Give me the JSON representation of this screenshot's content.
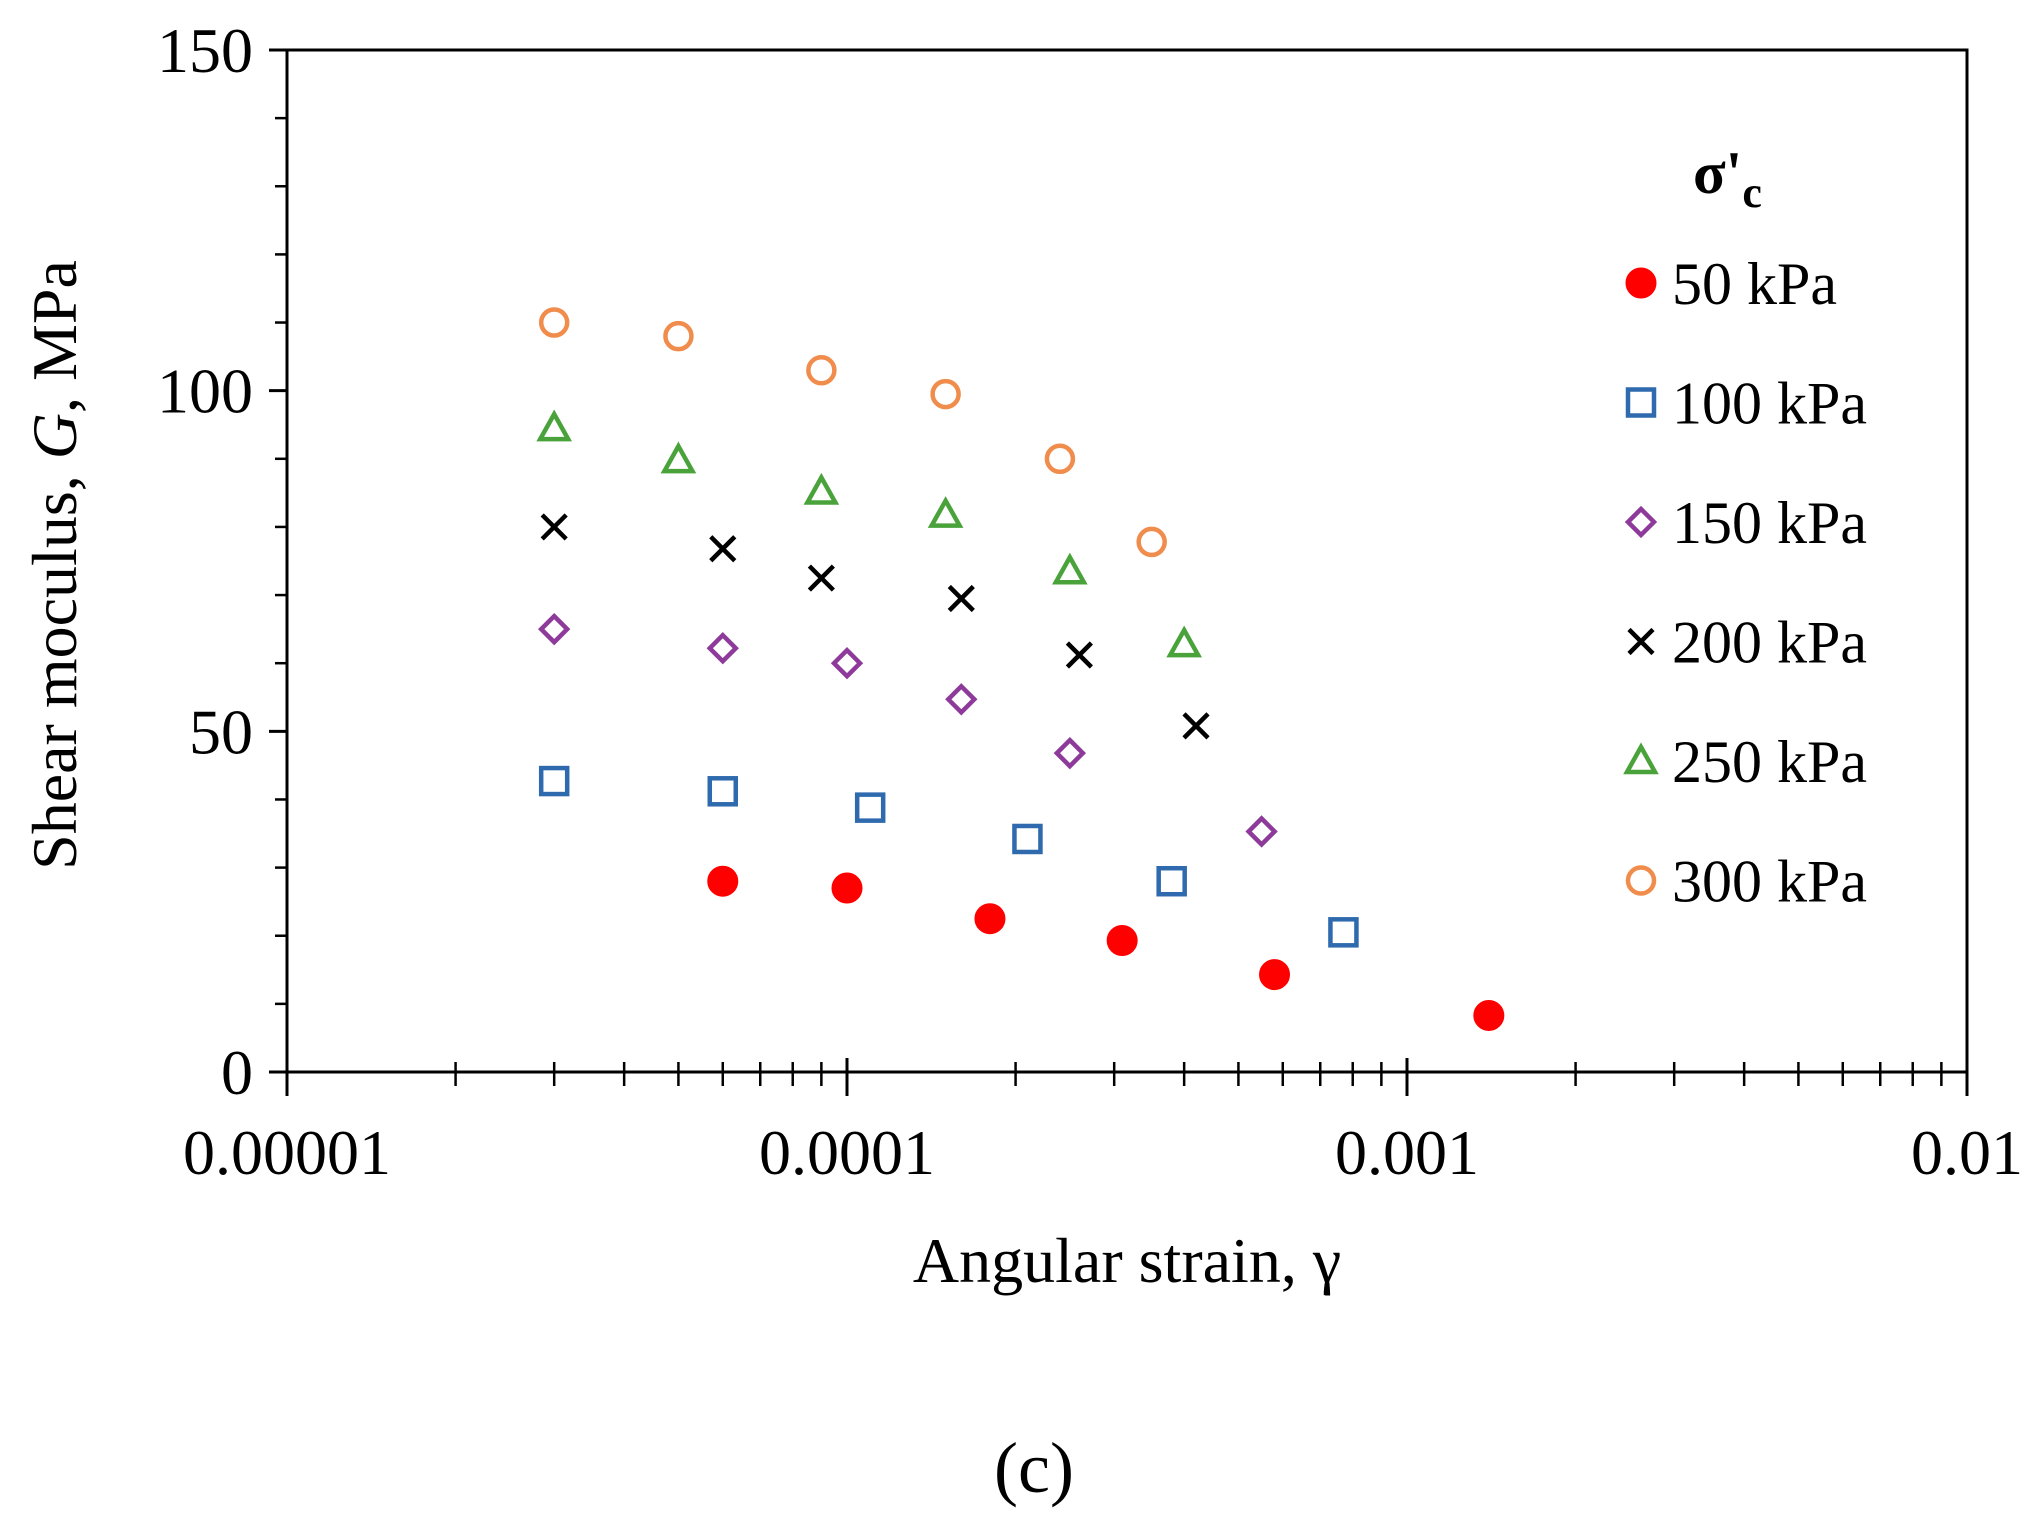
{
  "chart_data": {
    "type": "scatter",
    "x_scale": "log",
    "xlim": [
      1e-05,
      0.01
    ],
    "ylim": [
      0,
      150
    ],
    "xticks": [
      1e-05,
      0.0001,
      0.001,
      0.01
    ],
    "x_tick_labels": [
      "0.00001",
      "0.0001",
      "0.001",
      "0.01"
    ],
    "yticks": [
      0,
      50,
      100,
      150
    ],
    "y_tick_labels": [
      "0",
      "50",
      "100",
      "150"
    ],
    "y_minor_step": 10,
    "xlabel": "Angular strain, γ",
    "ylabel_parts": [
      "Shear moculus, ",
      "G",
      ", MPa"
    ],
    "legend": {
      "title_main": "σ'",
      "title_sub": "c",
      "location": "right"
    },
    "grid": false,
    "series": [
      {
        "name": "50 kPa",
        "marker": "filled-circle",
        "color": "#ff0000",
        "x": [
          6e-05,
          0.0001,
          0.00018,
          0.00031,
          0.00058,
          0.0014
        ],
        "y": [
          28,
          27,
          22.5,
          19.3,
          14.3,
          8.3
        ]
      },
      {
        "name": "100 kPa",
        "marker": "open-square",
        "color": "#2e6aad",
        "x": [
          3e-05,
          6e-05,
          0.00011,
          0.00021,
          0.00038,
          0.00077
        ],
        "y": [
          42.7,
          41.2,
          38.8,
          34.2,
          28,
          20.5
        ]
      },
      {
        "name": "150 kPa",
        "marker": "open-diamond",
        "color": "#8e3a9a",
        "x": [
          3e-05,
          6e-05,
          0.0001,
          0.00016,
          0.00025,
          0.00055
        ],
        "y": [
          65,
          62.2,
          60,
          54.7,
          46.8,
          35.3
        ]
      },
      {
        "name": "200 kPa",
        "marker": "x-cross",
        "color": "#000000",
        "x": [
          3e-05,
          6e-05,
          9e-05,
          0.00016,
          0.00026,
          0.00042
        ],
        "y": [
          80,
          76.8,
          72.5,
          69.5,
          61.2,
          50.8
        ]
      },
      {
        "name": "250 kPa",
        "marker": "open-triangle",
        "color": "#4aa33a",
        "x": [
          3e-05,
          5e-05,
          9e-05,
          0.00015,
          0.00025,
          0.0004
        ],
        "y": [
          94.5,
          89.8,
          85.2,
          81.8,
          73.5,
          62.8
        ]
      },
      {
        "name": "300 kPa",
        "marker": "open-circle",
        "color": "#f08c4c",
        "x": [
          3e-05,
          5e-05,
          9e-05,
          0.00015,
          0.00024,
          0.00035
        ],
        "y": [
          110,
          108,
          103,
          99.5,
          90,
          77.8
        ]
      }
    ]
  },
  "panel_label": "(c)"
}
